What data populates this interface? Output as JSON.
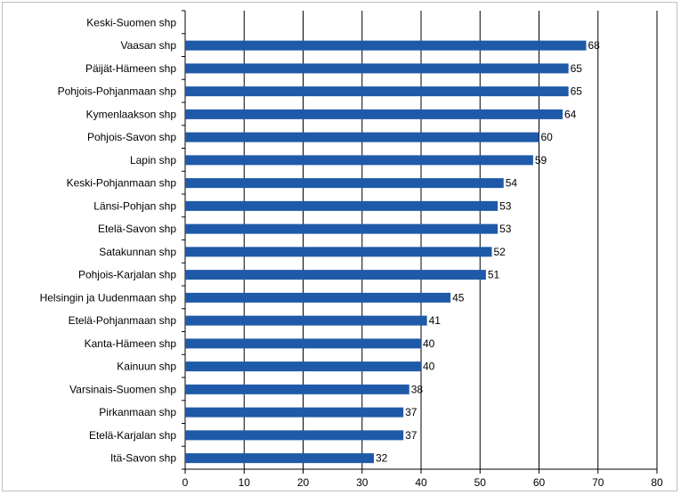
{
  "chart_data": {
    "type": "bar",
    "orientation": "horizontal",
    "categories": [
      "Keski-Suomen shp",
      "Vaasan shp",
      "Päijät-Hämeen shp",
      "Pohjois-Pohjanmaan shp",
      "Kymenlaakson shp",
      "Pohjois-Savon shp",
      "Lapin shp",
      "Keski-Pohjanmaan shp",
      "Länsi-Pohjan shp",
      "Etelä-Savon shp",
      "Satakunnan shp",
      "Pohjois-Karjalan shp",
      "Helsingin ja Uudenmaan shp",
      "Etelä-Pohjanmaan shp",
      "Kanta-Hämeen shp",
      "Kainuun shp",
      "Varsinais-Suomen shp",
      "Pirkanmaan shp",
      "Etelä-Karjalan shp",
      "Itä-Savon shp"
    ],
    "values": [
      null,
      68,
      65,
      65,
      64,
      60,
      59,
      54,
      53,
      53,
      52,
      51,
      45,
      41,
      40,
      40,
      38,
      37,
      37,
      32
    ],
    "value_labels": [
      "",
      "68",
      "65",
      "65",
      "64",
      "60",
      "59",
      "54",
      "53",
      "53",
      "52",
      "51",
      "45",
      "41",
      "40",
      "40",
      "38",
      "37",
      "37",
      "32"
    ],
    "xlim": [
      0,
      80
    ],
    "xticks": [
      "0",
      "10",
      "20",
      "30",
      "40",
      "50",
      "60",
      "70",
      "80"
    ],
    "grid": true,
    "bar_color": "#1f5aa8",
    "grid_color": "#000000"
  }
}
